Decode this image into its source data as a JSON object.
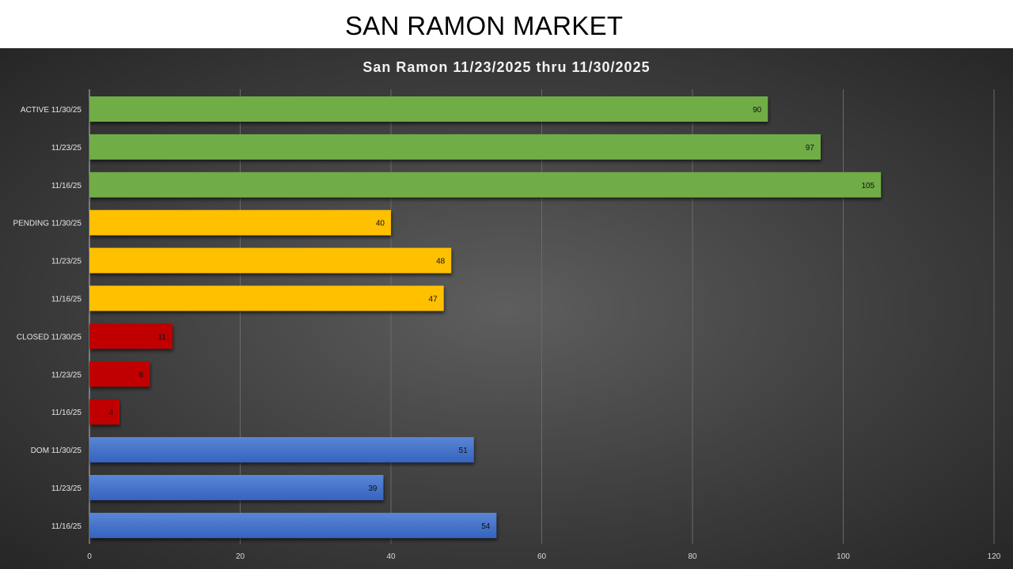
{
  "page_title": "SAN RAMON MARKET",
  "chart_data": {
    "type": "bar",
    "orientation": "horizontal",
    "title": "San Ramon 11/23/2025 thru 11/30/2025",
    "categories": [
      "ACTIVE 11/30/25",
      "11/23/25",
      "11/16/25",
      "PENDING 11/30/25",
      "11/23/25",
      "11/16/25",
      "CLOSED 11/30/25",
      "11/23/25",
      "11/16/25",
      "DOM 11/30/25",
      "11/23/25",
      "11/16/25"
    ],
    "values": [
      90,
      97,
      105,
      40,
      48,
      47,
      11,
      8,
      4,
      51,
      39,
      54
    ],
    "groups": [
      "active",
      "active",
      "active",
      "pending",
      "pending",
      "pending",
      "closed",
      "closed",
      "closed",
      "dom",
      "dom",
      "dom"
    ],
    "colors": {
      "active": "#70ad47",
      "pending": "#ffc000",
      "closed": "#c00000",
      "dom": "#4472c4"
    },
    "xlim": [
      0,
      120
    ],
    "xticks": [
      0,
      20,
      40,
      60,
      80,
      100,
      120
    ],
    "xlabel": "",
    "ylabel": "",
    "grid": true,
    "data_labels": true
  }
}
